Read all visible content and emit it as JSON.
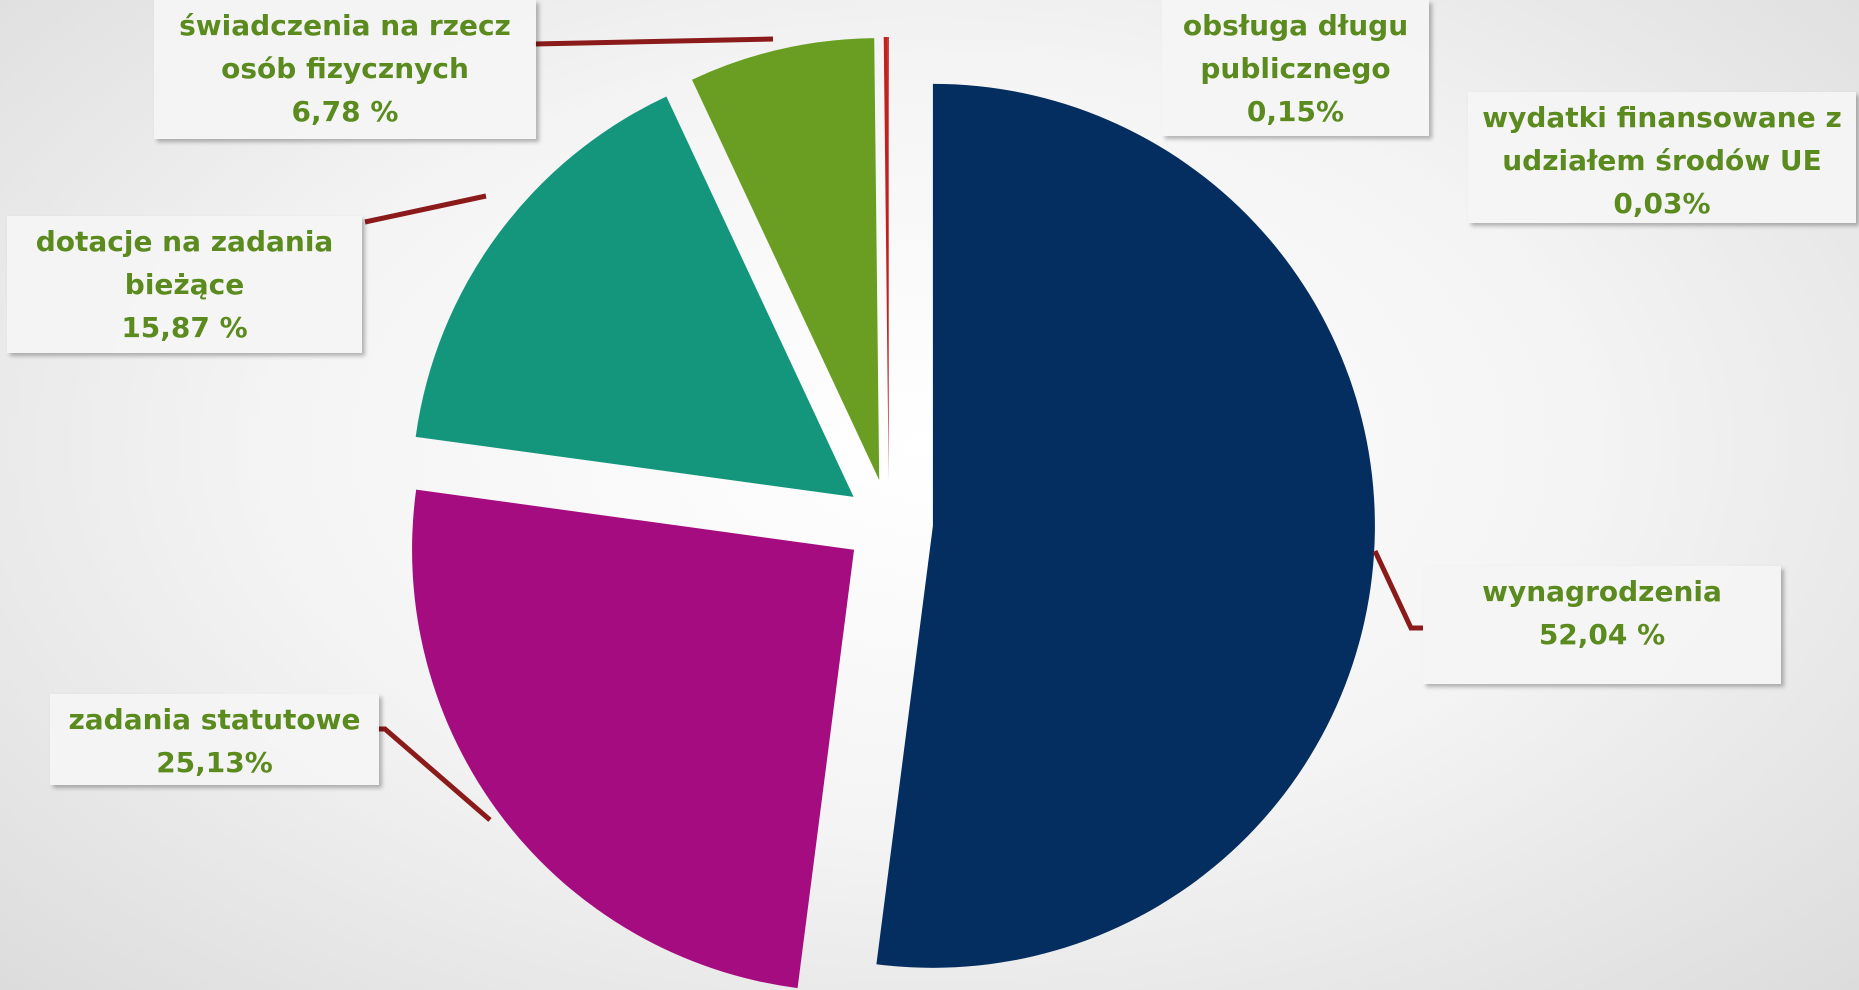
{
  "chart_data": {
    "type": "pie",
    "categories": [
      "wynagrodzenia",
      "zadania statutowe",
      "dotacje na zadania bieżące",
      "świadczenia na rzecz osób fizycznych",
      "obsługa długu publicznego",
      "wydatki finansowane z udziałem środów UE"
    ],
    "values": [
      52.04,
      25.13,
      15.87,
      6.78,
      0.15,
      0.03
    ],
    "value_labels": [
      "52,04 %",
      "25,13%",
      "15,87 %",
      "6,78 %",
      "0,15%",
      "0,03%"
    ],
    "colors": [
      "#042d60",
      "#a50c80",
      "#14967c",
      "#6a9e22",
      "#c0201e",
      "#c0201e"
    ]
  }
}
